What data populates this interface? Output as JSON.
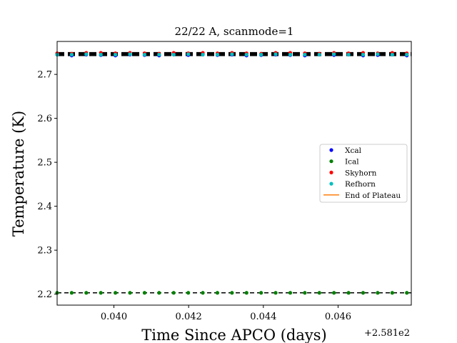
{
  "chart_data": {
    "type": "scatter",
    "title": "22/22 A, scanmode=1",
    "xlabel": "Time Since APCO (days)",
    "ylabel": "Temperature (K)",
    "x_offset_label": "+2.581e2",
    "xlim": [
      258.13848,
      258.14796
    ],
    "ylim": [
      2.175,
      2.775
    ],
    "xticks": [
      258.14,
      258.142,
      258.144,
      258.146
    ],
    "xtick_labels": [
      "0.040",
      "0.042",
      "0.044",
      "0.046"
    ],
    "yticks": [
      2.2,
      2.3,
      2.4,
      2.5,
      2.6,
      2.7
    ],
    "ytick_labels": [
      "2.2",
      "2.3",
      "2.4",
      "2.5",
      "2.6",
      "2.7"
    ],
    "x": [
      258.13848,
      258.13887,
      258.13926,
      258.13965,
      258.14004,
      258.14043,
      258.14082,
      258.14121,
      258.1416,
      258.14199,
      258.14238,
      258.14277,
      258.14316,
      258.14355,
      258.14394,
      258.14433,
      258.14472,
      258.14511,
      258.1455,
      258.14589,
      258.14628,
      258.14667,
      258.14706,
      258.14745,
      258.14784
    ],
    "series": [
      {
        "name": "Xcal",
        "color": "#0000ff",
        "marker": "dot",
        "y_values": [
          2.745,
          2.743,
          2.745,
          2.744,
          2.743,
          2.745,
          2.744,
          2.743,
          2.745,
          2.744,
          2.745,
          2.744,
          2.745,
          2.743,
          2.744,
          2.745,
          2.744,
          2.743,
          2.745,
          2.744,
          2.745,
          2.743,
          2.744,
          2.745,
          2.743
        ]
      },
      {
        "name": "Ical",
        "color": "#008000",
        "marker": "dot",
        "y_values": [
          2.203,
          2.203,
          2.203,
          2.203,
          2.203,
          2.203,
          2.203,
          2.203,
          2.203,
          2.203,
          2.203,
          2.203,
          2.203,
          2.203,
          2.203,
          2.203,
          2.203,
          2.203,
          2.203,
          2.203,
          2.203,
          2.203,
          2.203,
          2.203,
          2.203
        ]
      },
      {
        "name": "Skyhorn",
        "color": "#ff0000",
        "marker": "dot",
        "y_values": [
          2.748,
          2.747,
          2.749,
          2.749,
          2.748,
          2.749,
          2.748,
          2.747,
          2.749,
          2.748,
          2.749,
          2.748,
          2.749,
          2.748,
          2.747,
          2.749,
          2.749,
          2.748,
          2.747,
          2.749,
          2.748,
          2.749,
          2.748,
          2.749,
          2.748
        ]
      },
      {
        "name": "Refhorn",
        "color": "#00bfbf",
        "marker": "dot",
        "y_values": [
          2.745,
          2.745,
          2.746,
          2.745,
          2.745,
          2.746,
          2.745,
          2.745,
          2.745,
          2.746,
          2.745,
          2.745,
          2.746,
          2.745,
          2.745,
          2.746,
          2.745,
          2.745,
          2.745,
          2.746,
          2.745,
          2.745,
          2.746,
          2.745,
          2.745
        ]
      },
      {
        "name": "End of Plateau",
        "color": "#ff7f0e",
        "marker": "line",
        "y_values": []
      }
    ],
    "reference_lines": [
      {
        "y": 2.7475,
        "style": "dashed",
        "color": "#000000",
        "weight": "thick"
      },
      {
        "y": 2.745,
        "style": "dashed",
        "color": "#000000",
        "weight": "thick"
      },
      {
        "y": 2.203,
        "style": "dashed",
        "color": "#000000",
        "weight": "normal"
      }
    ],
    "grid": false,
    "legend_position": "right"
  }
}
